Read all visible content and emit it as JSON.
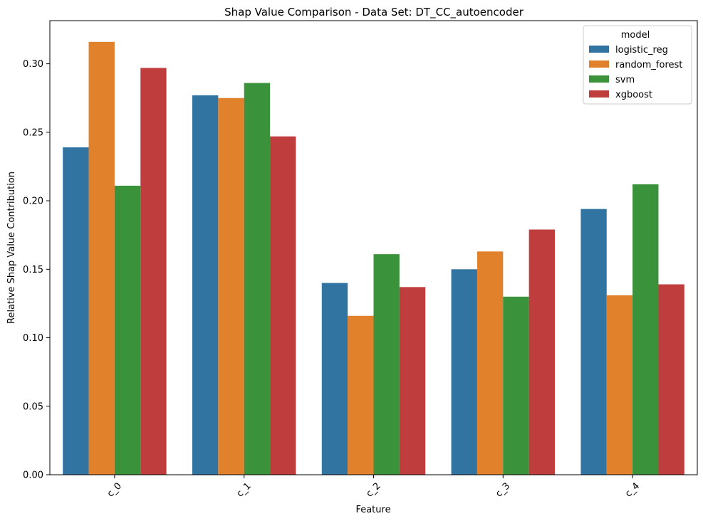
{
  "chart_data": {
    "type": "bar",
    "title": "Shap Value Comparison - Data Set: DT_CC_autoencoder",
    "xlabel": "Feature",
    "ylabel": "Relative Shap Value Contribution",
    "categories": [
      "c_0",
      "c_1",
      "c_2",
      "c_3",
      "c_4"
    ],
    "ylim": [
      0,
      0.3315
    ],
    "yticks": [
      0.0,
      0.05,
      0.1,
      0.15,
      0.2,
      0.25,
      0.3
    ],
    "ytick_labels": [
      "0.00",
      "0.05",
      "0.10",
      "0.15",
      "0.20",
      "0.25",
      "0.30"
    ],
    "xtick_rotation": 45,
    "legend": {
      "title": "model",
      "placement": "top-right"
    },
    "grid": false,
    "series": [
      {
        "name": "logistic_reg",
        "color": "#3274a1",
        "values": [
          0.239,
          0.277,
          0.14,
          0.15,
          0.194
        ]
      },
      {
        "name": "random_forest",
        "color": "#e1812c",
        "values": [
          0.316,
          0.275,
          0.116,
          0.163,
          0.131
        ]
      },
      {
        "name": "svm",
        "color": "#3a923a",
        "values": [
          0.211,
          0.286,
          0.161,
          0.13,
          0.212
        ]
      },
      {
        "name": "xgboost",
        "color": "#c03d3e",
        "values": [
          0.297,
          0.247,
          0.137,
          0.179,
          0.139
        ]
      }
    ]
  }
}
